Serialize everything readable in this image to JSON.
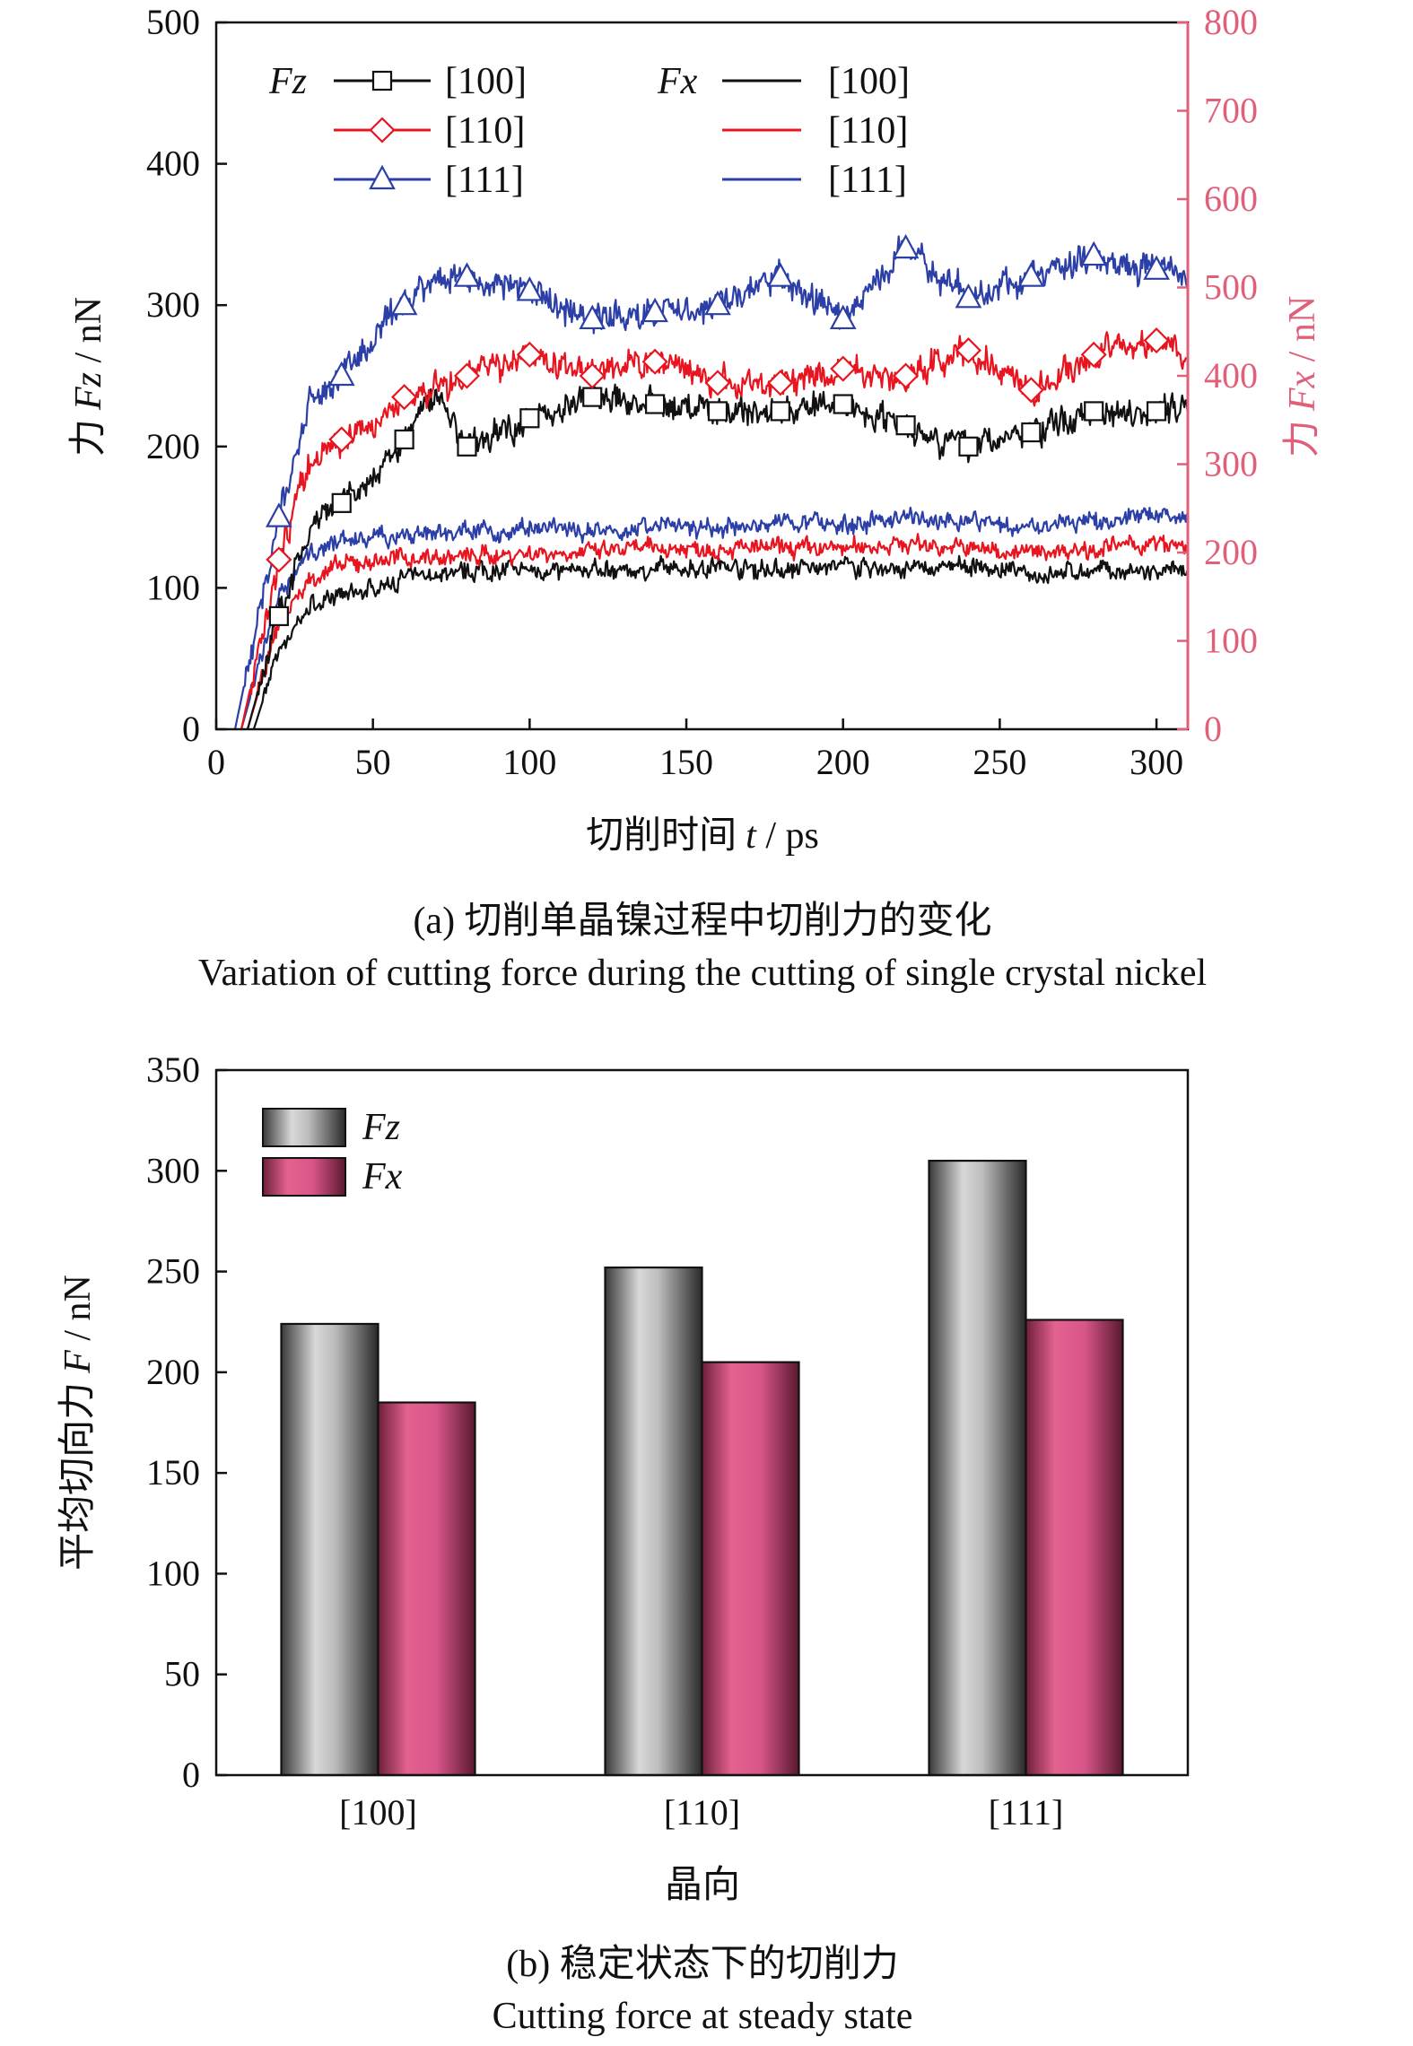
{
  "chart_data": [
    {
      "type": "line",
      "caption_cn": "(a) 切削单晶镍过程中切削力的变化",
      "caption_en": "Variation of cutting force during the cutting of single crystal nickel",
      "xlabel_text": "切削时间",
      "xlabel_var": "t",
      "xlabel_unit": " / ps",
      "ylabel_text": "力",
      "ylabel_var": "Fz",
      "ylabel_unit": " / nN",
      "y2label_text": "力",
      "y2label_var": "Fx",
      "y2label_unit": " / nN",
      "xlim": [
        0,
        310
      ],
      "ylim": [
        0,
        500
      ],
      "y2lim": [
        0,
        800
      ],
      "xticks": [
        "0",
        "50",
        "100",
        "150",
        "200",
        "250",
        "300"
      ],
      "yticks": [
        "0",
        "100",
        "200",
        "300",
        "400",
        "500"
      ],
      "y2ticks": [
        "0",
        "100",
        "200",
        "300",
        "400",
        "500",
        "600",
        "700",
        "800"
      ],
      "legend_fz": "Fz",
      "legend_fx": "Fx",
      "legend_labels": [
        "[100]",
        "[110]",
        "[111]"
      ],
      "colors": {
        "c100": "#111111",
        "c110": "#e8141f",
        "c111": "#2b3fa6",
        "right_axis": "#e0607a"
      },
      "series": [
        {
          "name": "[100]",
          "axis": "Fz",
          "marker": "square",
          "color": "#111111",
          "x": [
            0,
            10,
            20,
            30,
            40,
            50,
            60,
            70,
            80,
            100,
            120,
            140,
            160,
            180,
            200,
            220,
            240,
            260,
            280,
            300,
            310
          ],
          "y": [
            0,
            0,
            80,
            140,
            160,
            175,
            205,
            240,
            200,
            220,
            235,
            230,
            225,
            225,
            230,
            215,
            200,
            210,
            225,
            225,
            230
          ]
        },
        {
          "name": "[110]",
          "axis": "Fz",
          "marker": "diamond",
          "color": "#e8141f",
          "x": [
            0,
            8,
            20,
            30,
            40,
            50,
            60,
            70,
            80,
            100,
            120,
            140,
            160,
            180,
            200,
            220,
            240,
            260,
            280,
            300,
            310
          ],
          "y": [
            0,
            0,
            120,
            190,
            205,
            215,
            235,
            240,
            250,
            265,
            250,
            260,
            245,
            245,
            255,
            250,
            268,
            240,
            265,
            275,
            260
          ]
        },
        {
          "name": "[111]",
          "axis": "Fz",
          "marker": "triangle",
          "color": "#2b3fa6",
          "x": [
            0,
            6,
            20,
            30,
            40,
            50,
            60,
            70,
            80,
            100,
            120,
            140,
            160,
            180,
            200,
            220,
            240,
            260,
            280,
            300,
            310
          ],
          "y": [
            0,
            0,
            150,
            230,
            250,
            275,
            300,
            320,
            320,
            310,
            290,
            295,
            300,
            320,
            290,
            340,
            305,
            320,
            335,
            325,
            320
          ]
        },
        {
          "name": "[100]",
          "axis": "Fx",
          "color": "#111111",
          "x": [
            0,
            12,
            20,
            30,
            40,
            50,
            60,
            80,
            100,
            120,
            140,
            160,
            180,
            200,
            220,
            240,
            260,
            280,
            300,
            310
          ],
          "y": [
            0,
            0,
            90,
            140,
            150,
            160,
            170,
            180,
            180,
            180,
            180,
            185,
            180,
            185,
            180,
            185,
            175,
            180,
            175,
            180
          ]
        },
        {
          "name": "[110]",
          "axis": "Fx",
          "color": "#e8141f",
          "x": [
            0,
            10,
            20,
            30,
            40,
            50,
            60,
            80,
            100,
            120,
            140,
            160,
            180,
            200,
            220,
            240,
            260,
            280,
            300,
            310
          ],
          "y": [
            0,
            0,
            120,
            170,
            185,
            190,
            195,
            195,
            200,
            200,
            205,
            205,
            205,
            205,
            210,
            205,
            200,
            205,
            210,
            205
          ]
        },
        {
          "name": "[111]",
          "axis": "Fx",
          "color": "#2b3fa6",
          "x": [
            0,
            8,
            20,
            30,
            40,
            50,
            60,
            80,
            100,
            120,
            140,
            160,
            180,
            200,
            220,
            240,
            260,
            280,
            300,
            310
          ],
          "y": [
            0,
            0,
            150,
            200,
            215,
            215,
            220,
            225,
            225,
            225,
            230,
            225,
            235,
            230,
            240,
            235,
            230,
            235,
            245,
            240
          ]
        }
      ]
    },
    {
      "type": "bar",
      "caption_cn": "(b) 稳定状态下的切削力",
      "caption_en": "Cutting force at steady state",
      "xlabel": "晶向",
      "ylabel_text": "平均切向力",
      "ylabel_var": "F",
      "ylabel_unit": " / nN",
      "categories": [
        "[100]",
        "[110]",
        "[111]"
      ],
      "ylim": [
        0,
        350
      ],
      "yticks": [
        "0",
        "50",
        "100",
        "150",
        "200",
        "250",
        "300",
        "350"
      ],
      "series": [
        {
          "name": "Fz",
          "values": [
            224,
            252,
            305
          ],
          "color": "#9a9a9a"
        },
        {
          "name": "Fx",
          "values": [
            185,
            205,
            226
          ],
          "color": "#d9568a"
        }
      ]
    }
  ]
}
